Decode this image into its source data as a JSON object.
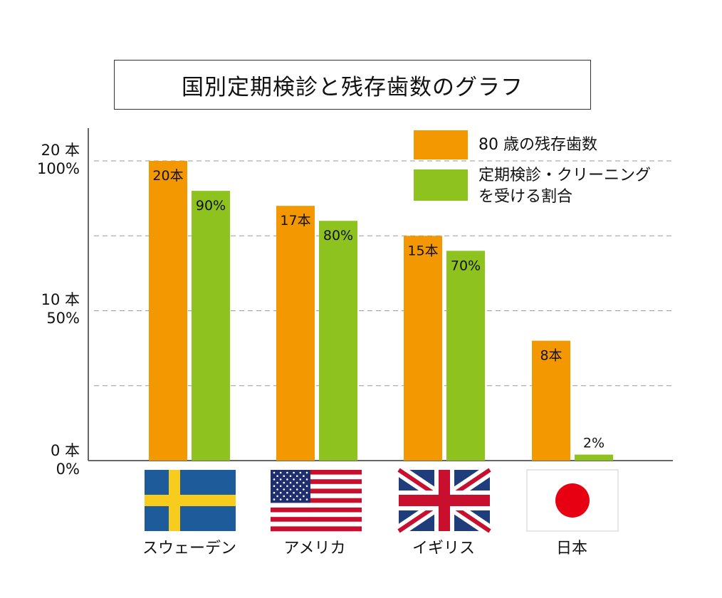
{
  "title": "国別定期検診と残存歯数のグラフ",
  "legend": {
    "items": [
      {
        "label": "80 歳の残存歯数",
        "color": "#f39800"
      },
      {
        "label": "定期検診・クリーニング\nを受ける割合",
        "color": "#8dc21f"
      }
    ]
  },
  "chart_data": {
    "type": "bar",
    "categories": [
      "スウェーデン",
      "アメリカ",
      "イギリス",
      "日本"
    ],
    "series": [
      {
        "name": "80 歳の残存歯数",
        "values": [
          20,
          17,
          15,
          8
        ],
        "labels": [
          "20本",
          "17本",
          "15本",
          "8本"
        ],
        "unit": "本",
        "ylim": [
          0,
          20
        ]
      },
      {
        "name": "定期検診・クリーニングを受ける割合",
        "values": [
          90,
          80,
          70,
          2
        ],
        "labels": [
          "90%",
          "80%",
          "70%",
          "2%"
        ],
        "unit": "%",
        "ylim": [
          0,
          100
        ]
      }
    ],
    "y_ticks": [
      {
        "line1": "20 本",
        "line2": "100%"
      },
      {
        "line1": "10 本",
        "line2": "50%"
      },
      {
        "line1": "0 本",
        "line2": "0%"
      }
    ],
    "grid": "dashed",
    "legend_position": "top-right"
  },
  "flags": [
    {
      "country": "スウェーデン",
      "icon": "sweden-flag-icon"
    },
    {
      "country": "アメリカ",
      "icon": "usa-flag-icon"
    },
    {
      "country": "イギリス",
      "icon": "uk-flag-icon"
    },
    {
      "country": "日本",
      "icon": "japan-flag-icon"
    }
  ],
  "colors": {
    "orange": "#f39800",
    "green": "#8dc21f",
    "grid": "#9a9a9a",
    "axis": "#666666"
  }
}
